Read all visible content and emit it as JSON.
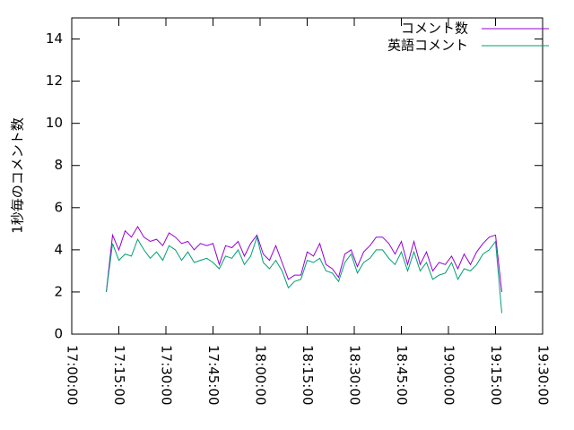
{
  "chart_data": {
    "type": "line",
    "y_label": "1秒毎のコメント数",
    "x": [
      "17:11:00",
      "17:13:00",
      "17:15:00",
      "17:17:00",
      "17:19:00",
      "17:21:00",
      "17:23:00",
      "17:25:00",
      "17:27:00",
      "17:29:00",
      "17:31:00",
      "17:33:00",
      "17:35:00",
      "17:37:00",
      "17:39:00",
      "17:41:00",
      "17:43:00",
      "17:45:00",
      "17:47:00",
      "17:49:00",
      "17:51:00",
      "17:53:00",
      "17:55:00",
      "17:57:00",
      "17:59:00",
      "18:01:00",
      "18:03:00",
      "18:05:00",
      "18:07:00",
      "18:09:00",
      "18:11:00",
      "18:13:00",
      "18:15:00",
      "18:17:00",
      "18:19:00",
      "18:21:00",
      "18:23:00",
      "18:25:00",
      "18:27:00",
      "18:29:00",
      "18:31:00",
      "18:33:00",
      "18:35:00",
      "18:37:00",
      "18:39:00",
      "18:41:00",
      "18:43:00",
      "18:45:00",
      "18:47:00",
      "18:49:00",
      "18:51:00",
      "18:53:00",
      "18:55:00",
      "18:57:00",
      "18:59:00",
      "19:01:00",
      "19:03:00",
      "19:05:00",
      "19:07:00",
      "19:09:00",
      "19:11:00",
      "19:13:00",
      "19:15:00",
      "19:17:00"
    ],
    "series": [
      {
        "name": "コメント数",
        "color": "#9400d3",
        "values": [
          2.0,
          4.7,
          4.0,
          4.9,
          4.6,
          5.1,
          4.6,
          4.4,
          4.5,
          4.2,
          4.8,
          4.6,
          4.3,
          4.4,
          4.0,
          4.3,
          4.2,
          4.3,
          3.3,
          4.2,
          4.1,
          4.4,
          3.7,
          4.3,
          4.7,
          3.8,
          3.5,
          4.2,
          3.4,
          2.6,
          2.8,
          2.8,
          3.9,
          3.7,
          4.3,
          3.3,
          3.1,
          2.7,
          3.8,
          4.0,
          3.2,
          3.9,
          4.2,
          4.6,
          4.6,
          4.3,
          3.8,
          4.4,
          3.3,
          4.4,
          3.3,
          3.9,
          3.0,
          3.4,
          3.3,
          3.7,
          3.1,
          3.8,
          3.3,
          3.9,
          4.3,
          4.6,
          4.7,
          2.0
        ]
      },
      {
        "name": "英語コメント",
        "color": "#009e73",
        "values": [
          2.0,
          4.3,
          3.5,
          3.8,
          3.7,
          4.5,
          4.0,
          3.6,
          3.9,
          3.5,
          4.2,
          4.0,
          3.5,
          3.9,
          3.4,
          3.5,
          3.6,
          3.4,
          3.1,
          3.7,
          3.6,
          4.0,
          3.3,
          3.7,
          4.6,
          3.4,
          3.1,
          3.5,
          3.0,
          2.2,
          2.5,
          2.6,
          3.5,
          3.4,
          3.6,
          3.0,
          2.9,
          2.5,
          3.4,
          3.8,
          2.9,
          3.4,
          3.6,
          4.0,
          4.0,
          3.6,
          3.3,
          3.9,
          3.0,
          3.9,
          3.0,
          3.4,
          2.6,
          2.8,
          2.9,
          3.4,
          2.6,
          3.1,
          3.0,
          3.3,
          3.8,
          4.0,
          4.4,
          1.0
        ]
      }
    ],
    "xlim": [
      "17:00:00",
      "19:30:00"
    ],
    "xticks": [
      "17:00:00",
      "17:15:00",
      "17:30:00",
      "17:45:00",
      "18:00:00",
      "18:15:00",
      "18:30:00",
      "18:45:00",
      "19:00:00",
      "19:15:00",
      "19:30:00"
    ],
    "ylim": [
      0,
      15
    ],
    "yticks": [
      0,
      2,
      4,
      6,
      8,
      10,
      12,
      14
    ],
    "legend": "top-right"
  }
}
